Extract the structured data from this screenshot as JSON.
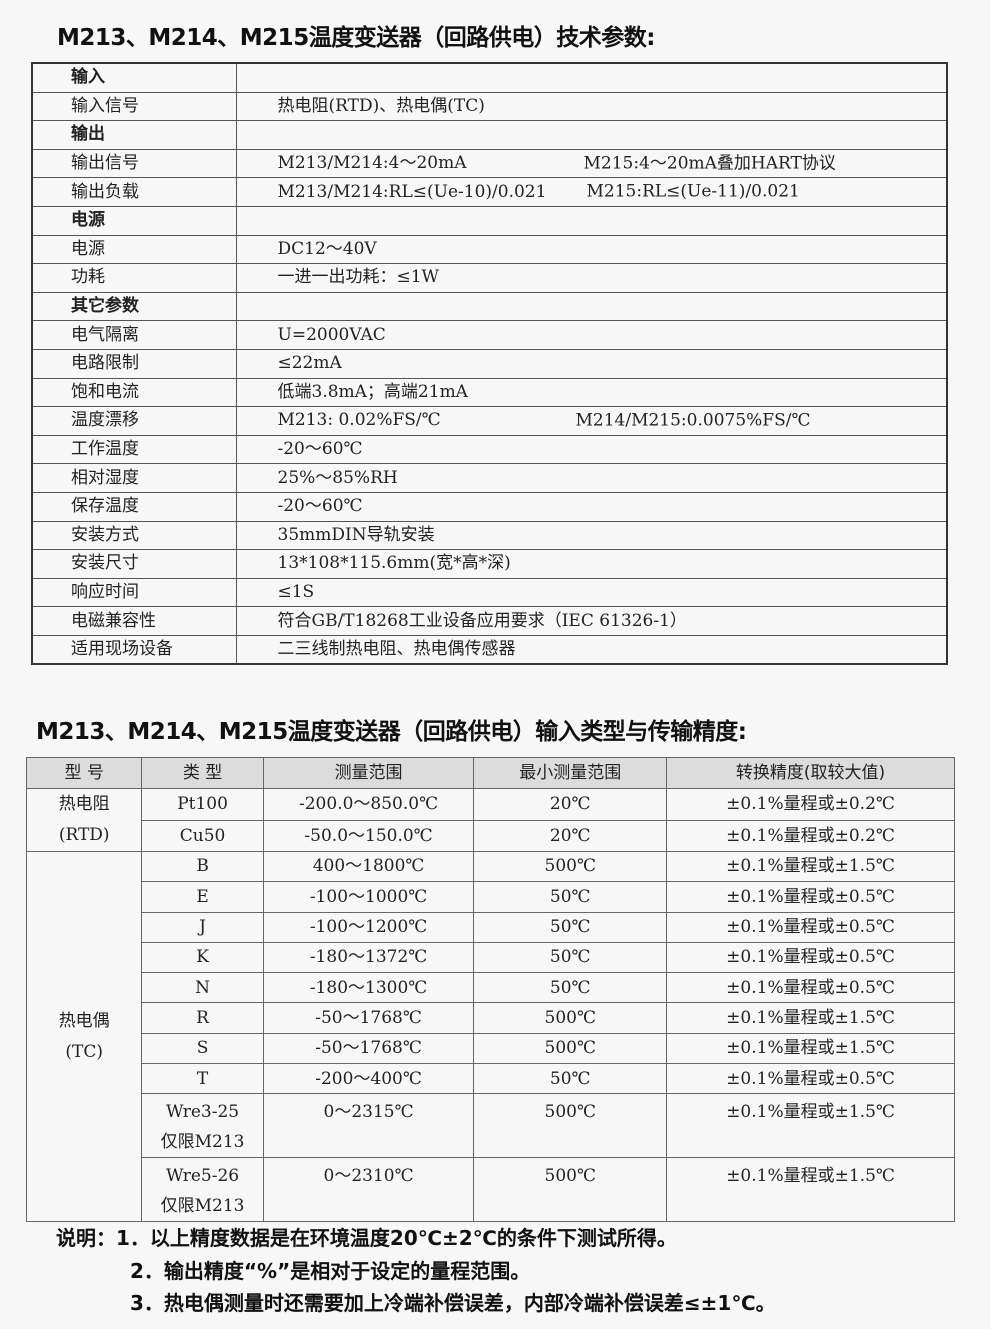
{
  "title1": "M213、M214、M215温度变送器（回路供电）技术参数:",
  "spec_rows": [
    {
      "label": "输入",
      "bold": true,
      "value": ""
    },
    {
      "label": "输入信号",
      "value": "热电阻(RTD)、热电偶(TC)"
    },
    {
      "label": "输出",
      "bold": true,
      "value": ""
    },
    {
      "label": "输出信号",
      "value": "M213/M214:4～20mA",
      "value2": "M215:4～20mA叠加HART协议"
    },
    {
      "label": "输出负载",
      "value": "M213/M214:RL≤(Ue-10)/0.021",
      "value2": "M215:RL≤(Ue-11)/0.021"
    },
    {
      "label": "电源",
      "bold": true,
      "value": ""
    },
    {
      "label": "电源",
      "value": "DC12～40V"
    },
    {
      "label": "功耗",
      "value": "一进一出功耗：≤1W"
    },
    {
      "label": "其它参数",
      "bold": true,
      "value": ""
    },
    {
      "label": "电气隔离",
      "value": "U=2000VAC"
    },
    {
      "label": "电路限制",
      "value": "≤22mA"
    },
    {
      "label": "饱和电流",
      "value": "低端3.8mA；高端21mA"
    },
    {
      "label": "温度漂移",
      "value": "M213: 0.02%FS/℃",
      "value2": "M214/M215:0.0075%FS/℃"
    },
    {
      "label": "工作温度",
      "value": "-20～60℃"
    },
    {
      "label": "相对湿度",
      "value": "25%～85%RH"
    },
    {
      "label": "保存温度",
      "value": "-20～60℃"
    },
    {
      "label": "安装方式",
      "value": "35mmDIN导轨安装"
    },
    {
      "label": "安装尺寸",
      "value": "13*108*115.6mm(宽*高*深)"
    },
    {
      "label": "响应时间",
      "value": "≤1S"
    },
    {
      "label": "电磁兼容性",
      "value": "符合GB/T18268工业设备应用要求（IEC 61326-1）"
    },
    {
      "label": "适用现场设备",
      "value": "二三线制热电阻、热电偶传感器"
    }
  ],
  "title2": "M213、M214、M215温度变送器（回路供电）输入类型与传输精度:",
  "headers": [
    "型 号",
    "类 型",
    "测量范围",
    "最小测量范围",
    "转换精度(取较大值)"
  ],
  "groups": {
    "rtd": "热电阻\n(RTD)",
    "tc": "热电偶\n(TC)"
  },
  "rows": [
    [
      "Pt100",
      "-200.0～850.0℃",
      "20℃",
      "±0.1%量程或±0.2℃"
    ],
    [
      "Cu50",
      "-50.0～150.0℃",
      "20℃",
      "±0.1%量程或±0.2℃"
    ],
    [
      "B",
      "400～1800℃",
      "500℃",
      "±0.1%量程或±1.5℃"
    ],
    [
      "E",
      "-100～1000℃",
      "50℃",
      "±0.1%量程或±0.5℃"
    ],
    [
      "J",
      "-100～1200℃",
      "50℃",
      "±0.1%量程或±0.5℃"
    ],
    [
      "K",
      "-180～1372℃",
      "50℃",
      "±0.1%量程或±0.5℃"
    ],
    [
      "N",
      "-180～1300℃",
      "50℃",
      "±0.1%量程或±0.5℃"
    ],
    [
      "R",
      "-50～1768℃",
      "500℃",
      "±0.1%量程或±1.5℃"
    ],
    [
      "S",
      "-50～1768℃",
      "500℃",
      "±0.1%量程或±1.5℃"
    ],
    [
      "T",
      "-200～400℃",
      "50℃",
      "±0.1%量程或±0.5℃"
    ],
    [
      "Wre3-25\n仅限M213",
      "0～2315℃",
      "500℃",
      "±0.1%量程或±1.5℃"
    ],
    [
      "Wre5-26\n仅限M213",
      "0～2310℃",
      "500℃",
      "±0.1%量程或±1.5℃"
    ]
  ],
  "notes": [
    "说明：1．以上精度数据是在环境温度20℃±2℃的条件下测试所得。",
    "2．输出精度“%”是相对于设定的量程范围。",
    "3．热电偶测量时还需要加上冷端补偿误差，内部冷端补偿误差≤±1℃。"
  ]
}
